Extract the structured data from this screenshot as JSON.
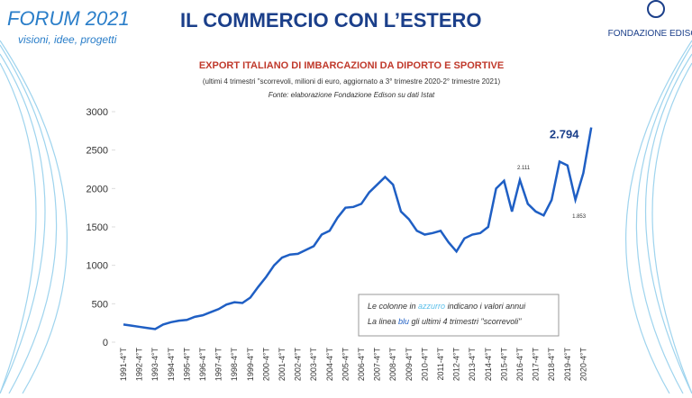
{
  "header": {
    "brand": "FORUM 2021",
    "tagline": "visioni, idee, progetti",
    "title": "IL COMMERCIO CON L’ESTERO",
    "logo": "FONDAZIONE EDISON"
  },
  "chart_data": {
    "type": "line",
    "title": "EXPORT ITALIANO DI IMBARCAZIONI DA DIPORTO E SPORTIVE",
    "subtitle": "(ultimi 4 trimestri \"scorrevoli, milioni di euro, aggiornato a 3° trimestre 2020-2° trimestre 2021)",
    "source": "Fonte: elaborazione Fondazione Edison su dati Istat",
    "note": [
      [
        "Le colonne in ",
        "azzurro",
        " indicano i valori annui"
      ],
      [
        "La linea ",
        "blu",
        " gli ultimi 4 trimestri \"scorrevoli\""
      ]
    ],
    "categories": [
      "1991-4°T",
      null,
      "1992-4°T",
      null,
      "1993-4°T",
      null,
      "1994-4°T",
      null,
      "1995-4°T",
      null,
      "1996-4°T",
      null,
      "1997-4°T",
      null,
      "1998-4°T",
      null,
      "1999-4°T",
      null,
      "2000-4°T",
      null,
      "2001-4°T",
      null,
      "2002-4°T",
      null,
      "2003-4°T",
      null,
      "2004-4°T",
      null,
      "2005-4°T",
      null,
      "2006-4°T",
      null,
      "2007-4°T",
      null,
      "2008-4°T",
      null,
      "2009-4°T",
      null,
      "2010-4°T",
      null,
      "2011-4°T",
      null,
      "2012-4°T",
      null,
      "2013-4°T",
      null,
      "2014-4°T",
      null,
      "2015-4°T",
      null,
      "2016-4°T",
      null,
      "2017-4°T",
      null,
      "2018-4°T",
      null,
      "2019-4°T",
      null,
      "2020-4°T",
      null
    ],
    "series": [
      {
        "color": "#1f5fc4",
        "values": [
          230,
          215,
          200,
          185,
          170,
          230,
          260,
          280,
          290,
          330,
          350,
          390,
          430,
          490,
          520,
          510,
          580,
          720,
          850,
          1000,
          1100,
          1140,
          1150,
          1200,
          1250,
          1400,
          1450,
          1620,
          1750,
          1760,
          1800,
          1950,
          2050,
          2150,
          2050,
          1700,
          1600,
          1450,
          1400,
          1420,
          1450,
          1300,
          1180,
          1350,
          1400,
          1420,
          1500,
          2000,
          2100,
          1700,
          2111,
          1800,
          1700,
          1650,
          1850,
          2350,
          2300,
          1853,
          2200,
          2794
        ],
        "value_labels": [
          null,
          null,
          null,
          null,
          null,
          null,
          null,
          null,
          null,
          null,
          null,
          null,
          null,
          null,
          null,
          null,
          null,
          null,
          null,
          null,
          null,
          null,
          null,
          null,
          null,
          null,
          null,
          null,
          null,
          null,
          null,
          null,
          null,
          null,
          null,
          null,
          null,
          null,
          null,
          null,
          null,
          null,
          null,
          null,
          null,
          null,
          null,
          null,
          null,
          null,
          "2.111",
          null,
          null,
          null,
          null,
          null,
          null,
          "1.853",
          null,
          "2.794"
        ]
      }
    ],
    "ylim": [
      0,
      3000
    ],
    "yticks": [
      0,
      500,
      1000,
      1500,
      2000,
      2500,
      3000
    ]
  }
}
